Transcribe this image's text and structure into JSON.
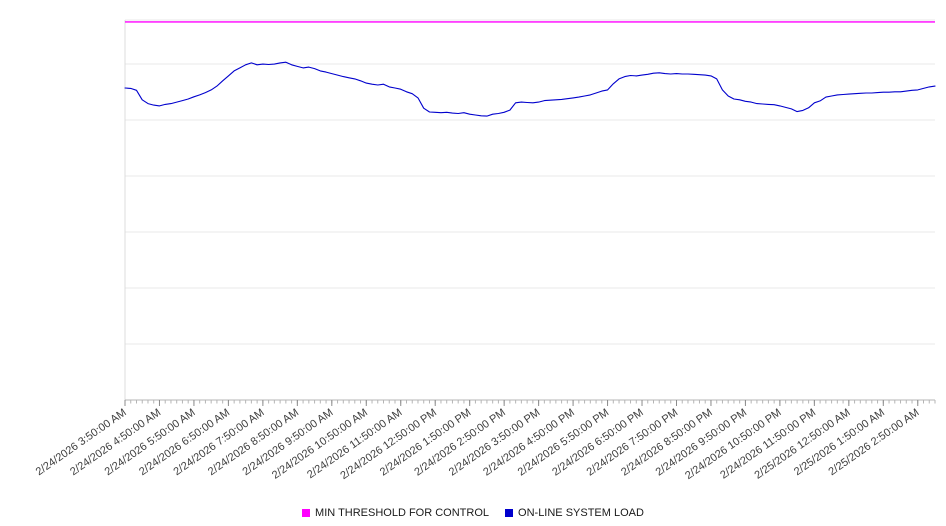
{
  "page": {
    "background": "#ffffff"
  },
  "legend": {
    "items": [
      {
        "label": "MIN THRESHOLD FOR CONTROL",
        "color": "#ff00ff"
      },
      {
        "label": "ON-LINE SYSTEM LOAD",
        "color": "#0000cd"
      }
    ]
  },
  "chart_data": {
    "type": "line",
    "title": "",
    "xlabel": "",
    "ylabel": "",
    "legend_position": "bottom",
    "grid": "horizontal",
    "y_axis_labels_visible": false,
    "note": "Y axis has no visible tick labels; values are estimated on a normalized 0-100 scale of plot height.",
    "ylim": [
      0,
      100
    ],
    "x_tick_labels": [
      "2/24/2026 3:50:00 AM",
      "2/24/2026 4:50:00 AM",
      "2/24/2026 5:50:00 AM",
      "2/24/2026 6:50:00 AM",
      "2/24/2026 7:50:00 AM",
      "2/24/2026 8:50:00 AM",
      "2/24/2026 9:50:00 AM",
      "2/24/2026 10:50:00 AM",
      "2/24/2026 11:50:00 AM",
      "2/24/2026 12:50:00 PM",
      "2/24/2026 1:50:00 PM",
      "2/24/2026 2:50:00 PM",
      "2/24/2026 3:50:00 PM",
      "2/24/2026 4:50:00 PM",
      "2/24/2026 5:50:00 PM",
      "2/24/2026 6:50:00 PM",
      "2/24/2026 7:50:00 PM",
      "2/24/2026 8:50:00 PM",
      "2/24/2026 9:50:00 PM",
      "2/24/2026 10:50:00 PM",
      "2/24/2026 11:50:00 PM",
      "2/25/2026 12:50:00 AM",
      "2/25/2026 1:50:00 AM",
      "2/25/2026 2:50:00 AM"
    ],
    "x_minor_tick_interval_minutes": 10,
    "series": [
      {
        "name": "MIN THRESHOLD FOR CONTROL",
        "color": "#ff00ff",
        "style": "constant",
        "value": 99.5
      },
      {
        "name": "ON-LINE SYSTEM LOAD",
        "color": "#0000cd",
        "start": "2/24/2026 3:50:00 AM",
        "interval_minutes": 10,
        "values": [
          82.1,
          82.0,
          81.5,
          79.0,
          78.0,
          77.6,
          77.4,
          77.8,
          78.0,
          78.4,
          78.8,
          79.2,
          79.8,
          80.3,
          80.9,
          81.6,
          82.6,
          84.0,
          85.3,
          86.6,
          87.4,
          88.2,
          88.7,
          88.2,
          88.4,
          88.3,
          88.4,
          88.7,
          88.9,
          88.2,
          87.8,
          87.4,
          87.6,
          87.2,
          86.6,
          86.3,
          85.9,
          85.5,
          85.1,
          84.8,
          84.5,
          84.0,
          83.4,
          83.1,
          82.9,
          83.1,
          82.4,
          82.1,
          81.8,
          81.1,
          80.6,
          79.5,
          76.8,
          75.8,
          75.7,
          75.6,
          75.7,
          75.5,
          75.4,
          75.6,
          75.2,
          75.0,
          74.8,
          74.7,
          75.2,
          75.4,
          75.7,
          76.3,
          78.2,
          78.4,
          78.3,
          78.2,
          78.4,
          78.8,
          78.9,
          79.0,
          79.1,
          79.3,
          79.5,
          79.7,
          80.0,
          80.3,
          80.8,
          81.3,
          81.6,
          83.2,
          84.5,
          85.1,
          85.4,
          85.3,
          85.5,
          85.7,
          86.0,
          86.1,
          85.9,
          85.8,
          85.9,
          85.8,
          85.8,
          85.7,
          85.6,
          85.5,
          85.3,
          84.5,
          81.6,
          80.0,
          79.2,
          79.0,
          78.6,
          78.4,
          78.0,
          77.9,
          77.8,
          77.7,
          77.4,
          77.0,
          76.6,
          75.9,
          76.2,
          76.9,
          78.2,
          78.7,
          79.7,
          80.0,
          80.3,
          80.4,
          80.5,
          80.6,
          80.7,
          80.8,
          80.8,
          80.9,
          81.0,
          81.0,
          81.1,
          81.1,
          81.3,
          81.5,
          81.6,
          82.0,
          82.4,
          82.6
        ]
      }
    ]
  }
}
